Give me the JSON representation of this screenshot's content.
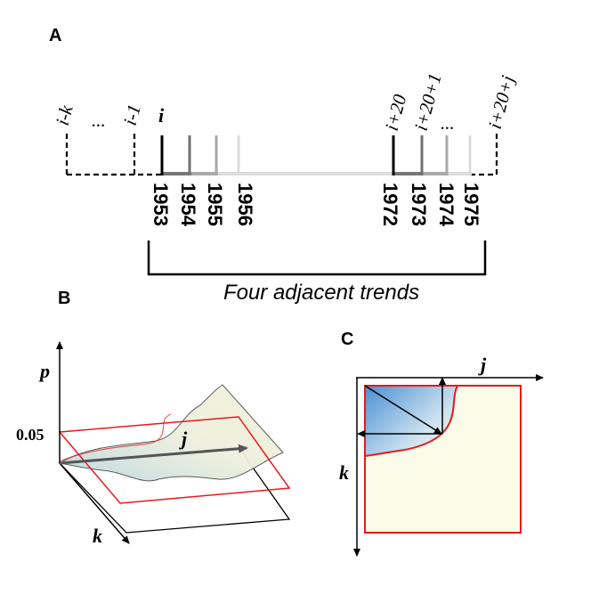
{
  "panels": {
    "a": "A",
    "b": "B",
    "c": "C"
  },
  "panel_a": {
    "caption": "Four adjacent trends",
    "years": [
      "1953",
      "1954",
      "1955",
      "1956",
      "1972",
      "1973",
      "1974",
      "1975"
    ],
    "markers_left": [
      "i-k",
      "...",
      "i-1",
      "i"
    ],
    "markers_right": [
      "i+20",
      "i+20+1",
      "...",
      "i+20+j"
    ]
  },
  "panel_b": {
    "axis_p": "p",
    "axis_j": "j",
    "axis_k": "k",
    "tick": "0.05"
  },
  "panel_c": {
    "axis_j": "j",
    "axis_k": "k"
  },
  "colors": {
    "red": "#e8191c",
    "surface": "#f7f7e4",
    "blue": "#5b9bd5"
  }
}
